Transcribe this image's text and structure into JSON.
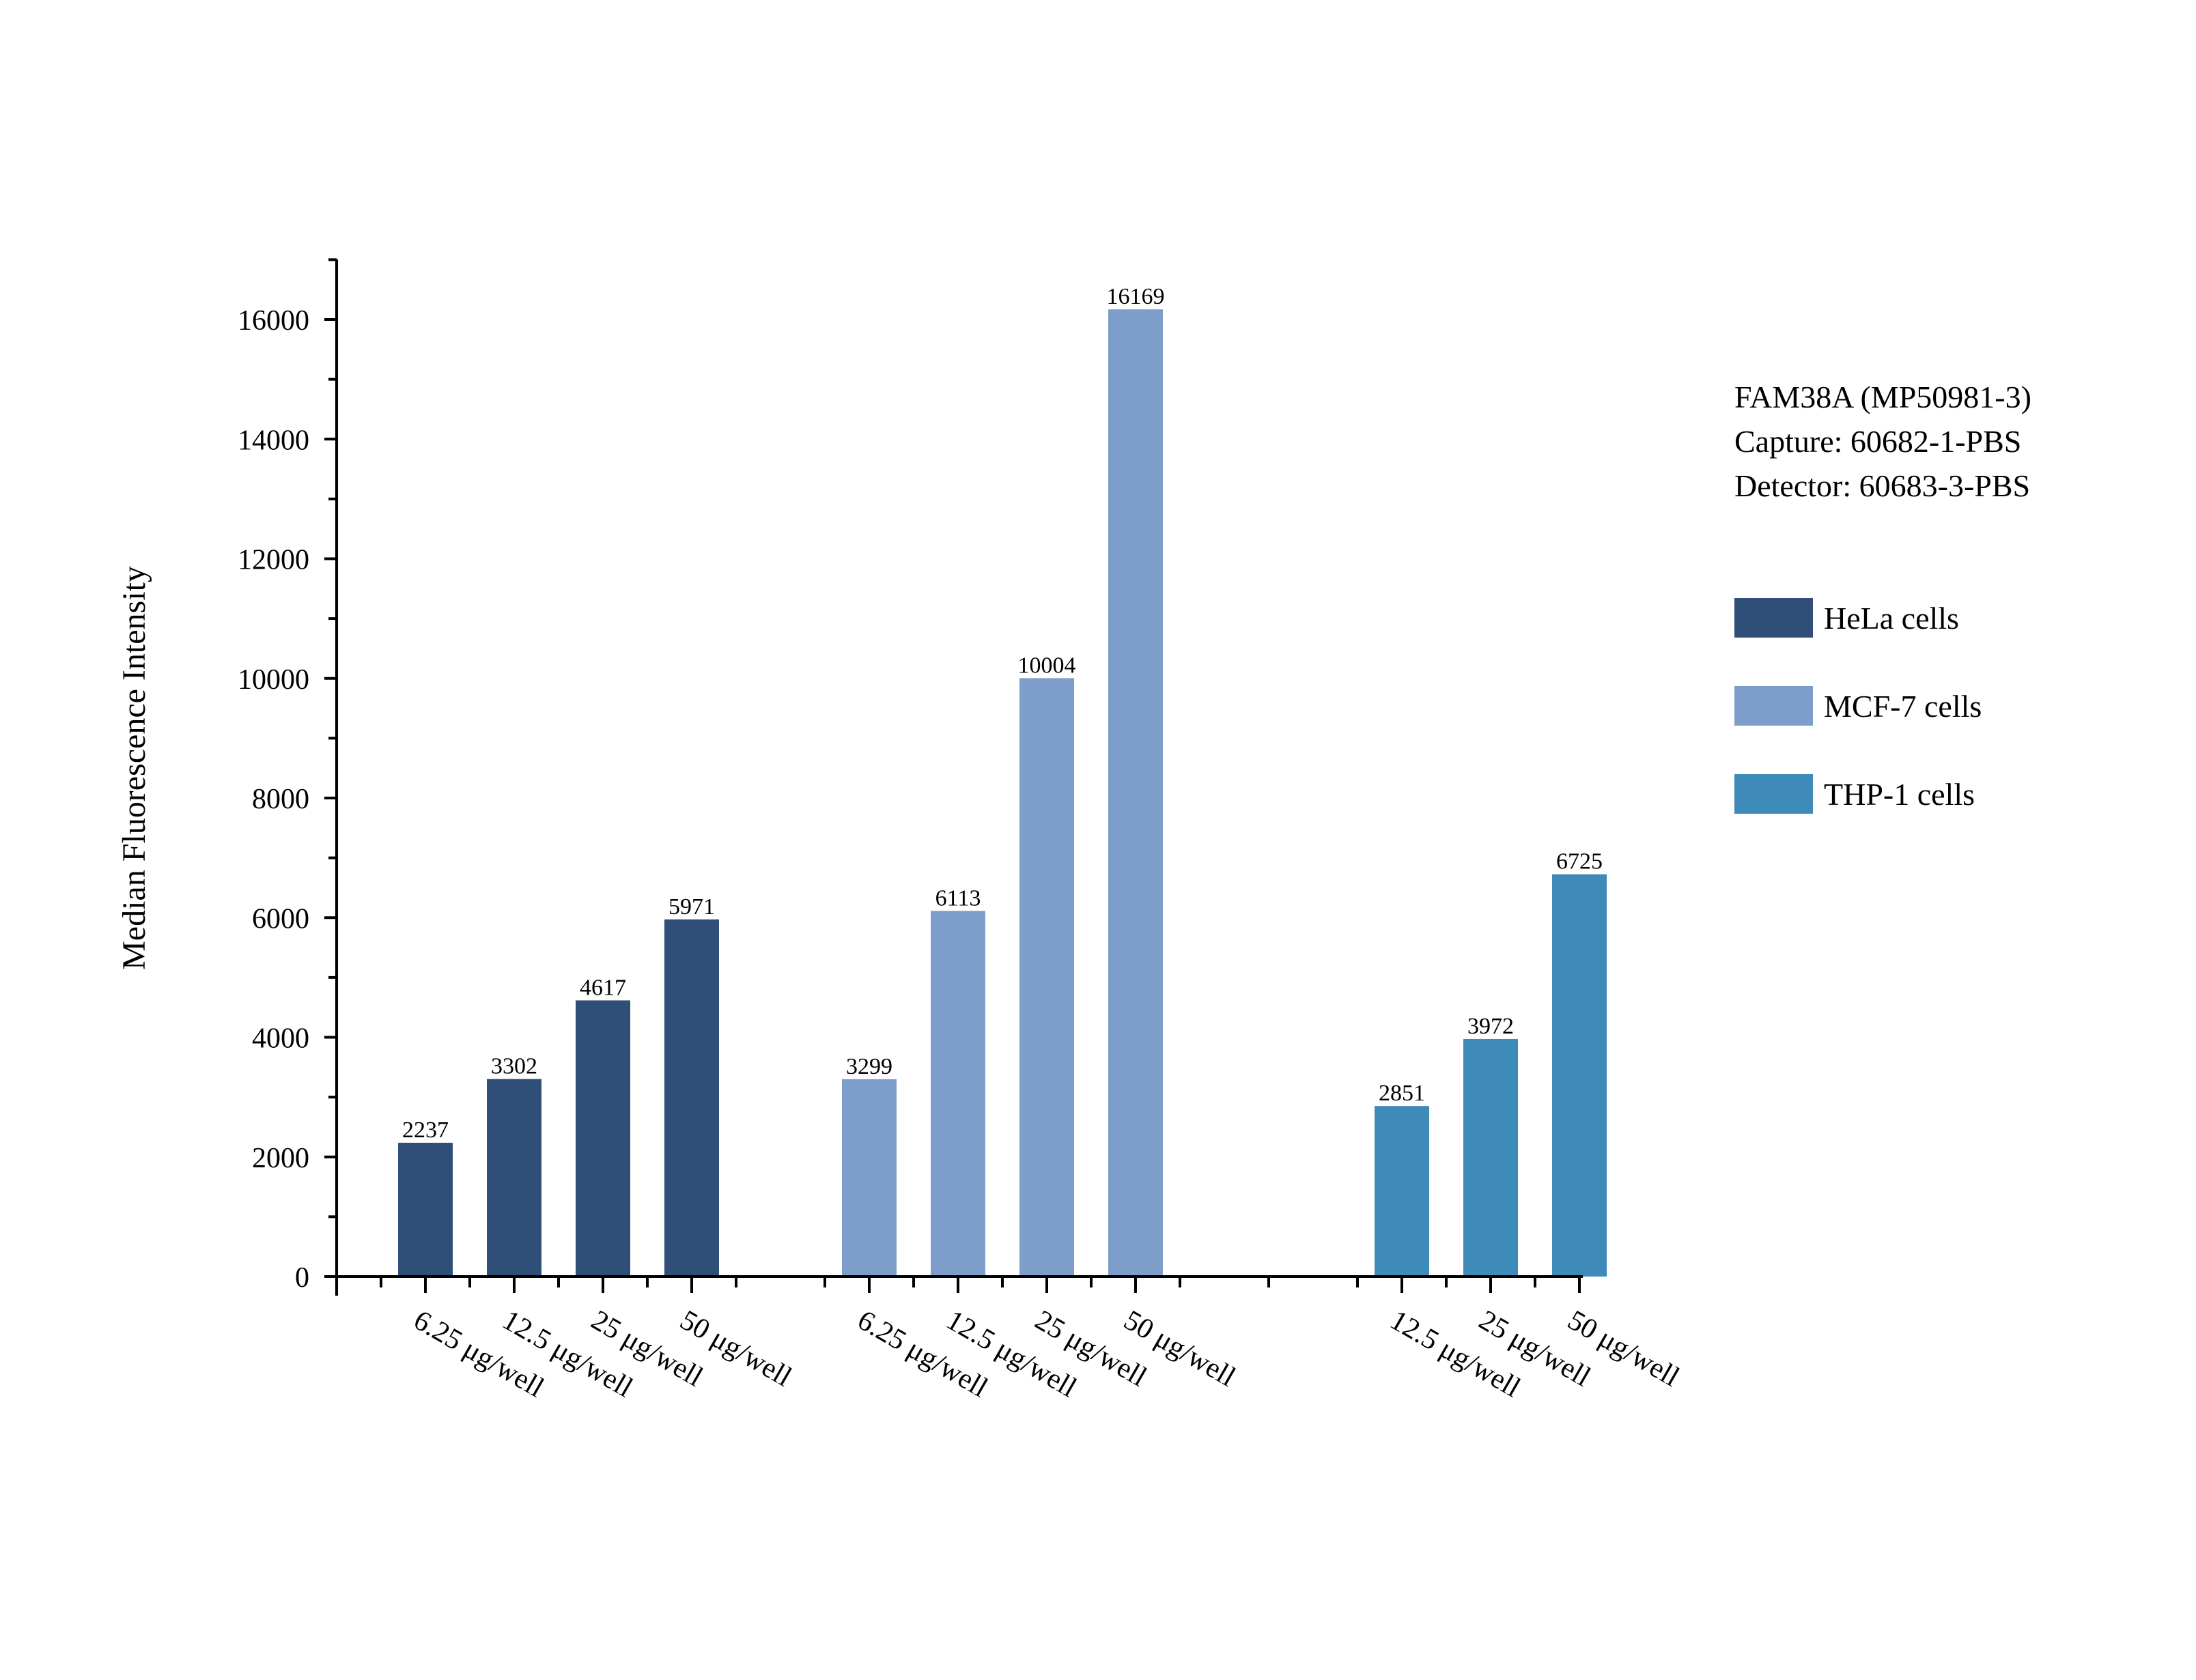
{
  "annotation": {
    "line1": "FAM38A (MP50981-3)",
    "line2": "Capture: 60682-1-PBS",
    "line3": "Detector: 60683-3-PBS"
  },
  "chart_data": {
    "type": "bar",
    "title": "",
    "xlabel": "",
    "ylabel": "Median Fluorescence Intensity",
    "ylim": [
      0,
      17000
    ],
    "yticks": [
      0,
      2000,
      4000,
      6000,
      8000,
      10000,
      12000,
      14000,
      16000
    ],
    "grid": false,
    "legend_position": "right",
    "series": [
      {
        "name": "HeLa cells",
        "color": "#2f4e78",
        "categories": [
          "6.25 μg/well",
          "12.5 μg/well",
          "25 μg/well",
          "50 μg/well"
        ],
        "values": [
          2237,
          3302,
          4617,
          5971
        ]
      },
      {
        "name": "MCF-7 cells",
        "color": "#7d9ecb",
        "categories": [
          "6.25 μg/well",
          "12.5 μg/well",
          "25 μg/well",
          "50 μg/well"
        ],
        "values": [
          3299,
          6113,
          10004,
          16169
        ]
      },
      {
        "name": "THP-1 cells",
        "color": "#3e8ab9",
        "categories": [
          "12.5 μg/well",
          "25 μg/well",
          "50 μg/well"
        ],
        "values": [
          2851,
          3972,
          6725
        ]
      }
    ]
  }
}
